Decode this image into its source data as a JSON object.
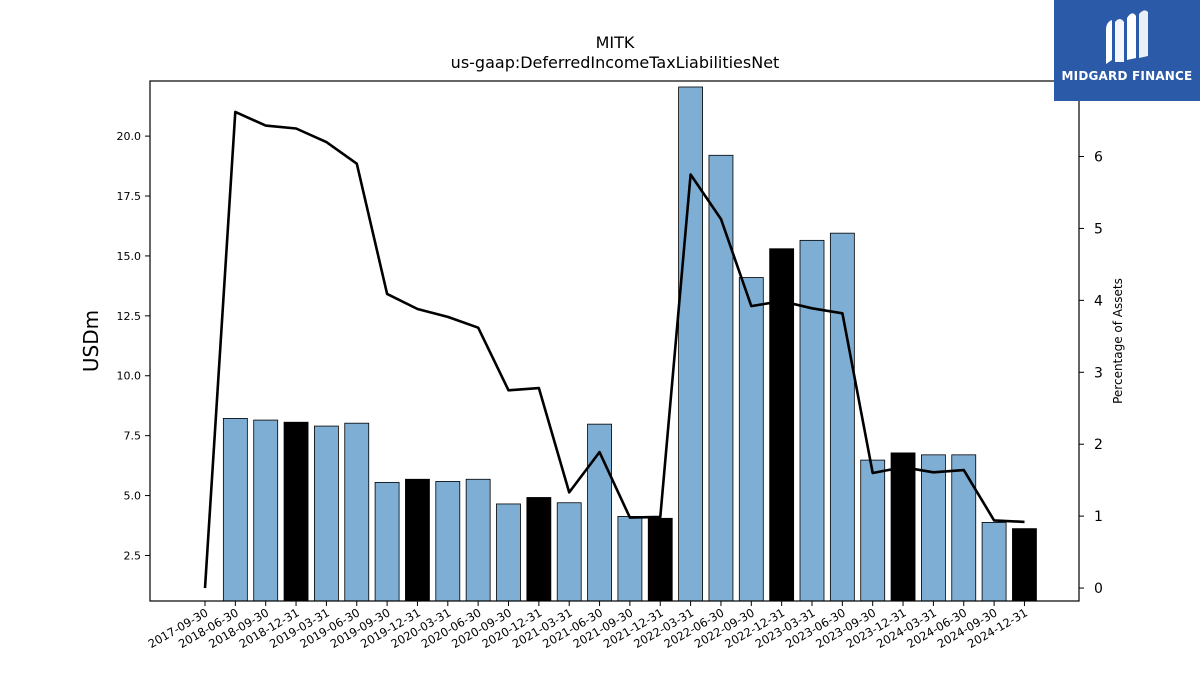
{
  "chart_data": {
    "type": "bar",
    "title": "MITK",
    "subtitle": "us-gaap:DeferredIncomeTaxLiabilitiesNet",
    "ylabel": "USDm",
    "y2label": "Percentage of Assets",
    "ylim": [
      0.6,
      22.3
    ],
    "y2lim": [
      -0.18,
      7.05
    ],
    "yticks": [
      2.5,
      5.0,
      7.5,
      10.0,
      12.5,
      15.0,
      17.5,
      20.0
    ],
    "y2ticks": [
      0,
      1,
      2,
      3,
      4,
      5,
      6
    ],
    "categories": [
      "2017-09-30",
      "2018-06-30",
      "2018-09-30",
      "2018-12-31",
      "2019-03-31",
      "2019-06-30",
      "2019-09-30",
      "2019-12-31",
      "2020-03-31",
      "2020-06-30",
      "2020-09-30",
      "2020-12-31",
      "2021-03-31",
      "2021-06-30",
      "2021-09-30",
      "2021-12-31",
      "2022-03-31",
      "2022-06-30",
      "2022-09-30",
      "2022-12-31",
      "2023-03-31",
      "2023-06-30",
      "2023-09-30",
      "2023-12-31",
      "2024-03-31",
      "2024-06-30",
      "2024-09-30",
      "2024-12-31"
    ],
    "series": [
      {
        "values": [
          null,
          8.22,
          8.15,
          8.06,
          7.9,
          8.02,
          5.55,
          5.68,
          5.59,
          5.68,
          4.65,
          4.92,
          4.7,
          7.98,
          4.13,
          4.05,
          22.05,
          19.2,
          14.1,
          15.3,
          15.65,
          15.95,
          6.48,
          6.78,
          6.7,
          6.7,
          3.88,
          3.62
        ],
        "highlight": [
          false,
          false,
          false,
          true,
          false,
          false,
          false,
          true,
          false,
          false,
          false,
          true,
          false,
          false,
          false,
          true,
          false,
          false,
          false,
          true,
          false,
          false,
          false,
          true,
          false,
          false,
          false,
          true
        ]
      },
      {
        "axis": "right",
        "values": [
          0.0,
          6.62,
          6.43,
          6.39,
          6.2,
          5.9,
          4.09,
          3.88,
          3.77,
          3.62,
          2.75,
          2.78,
          1.33,
          1.89,
          0.98,
          0.99,
          5.75,
          5.13,
          3.92,
          3.99,
          3.89,
          3.82,
          1.6,
          1.68,
          1.61,
          1.64,
          0.94,
          0.92
        ]
      }
    ],
    "colors": {
      "bar": "#7eaed3",
      "highlight": "#000000",
      "line": "#000000"
    },
    "grid": false
  },
  "brand": {
    "name": "MIDGARD FINANCE",
    "color": "#2b5aa8"
  }
}
